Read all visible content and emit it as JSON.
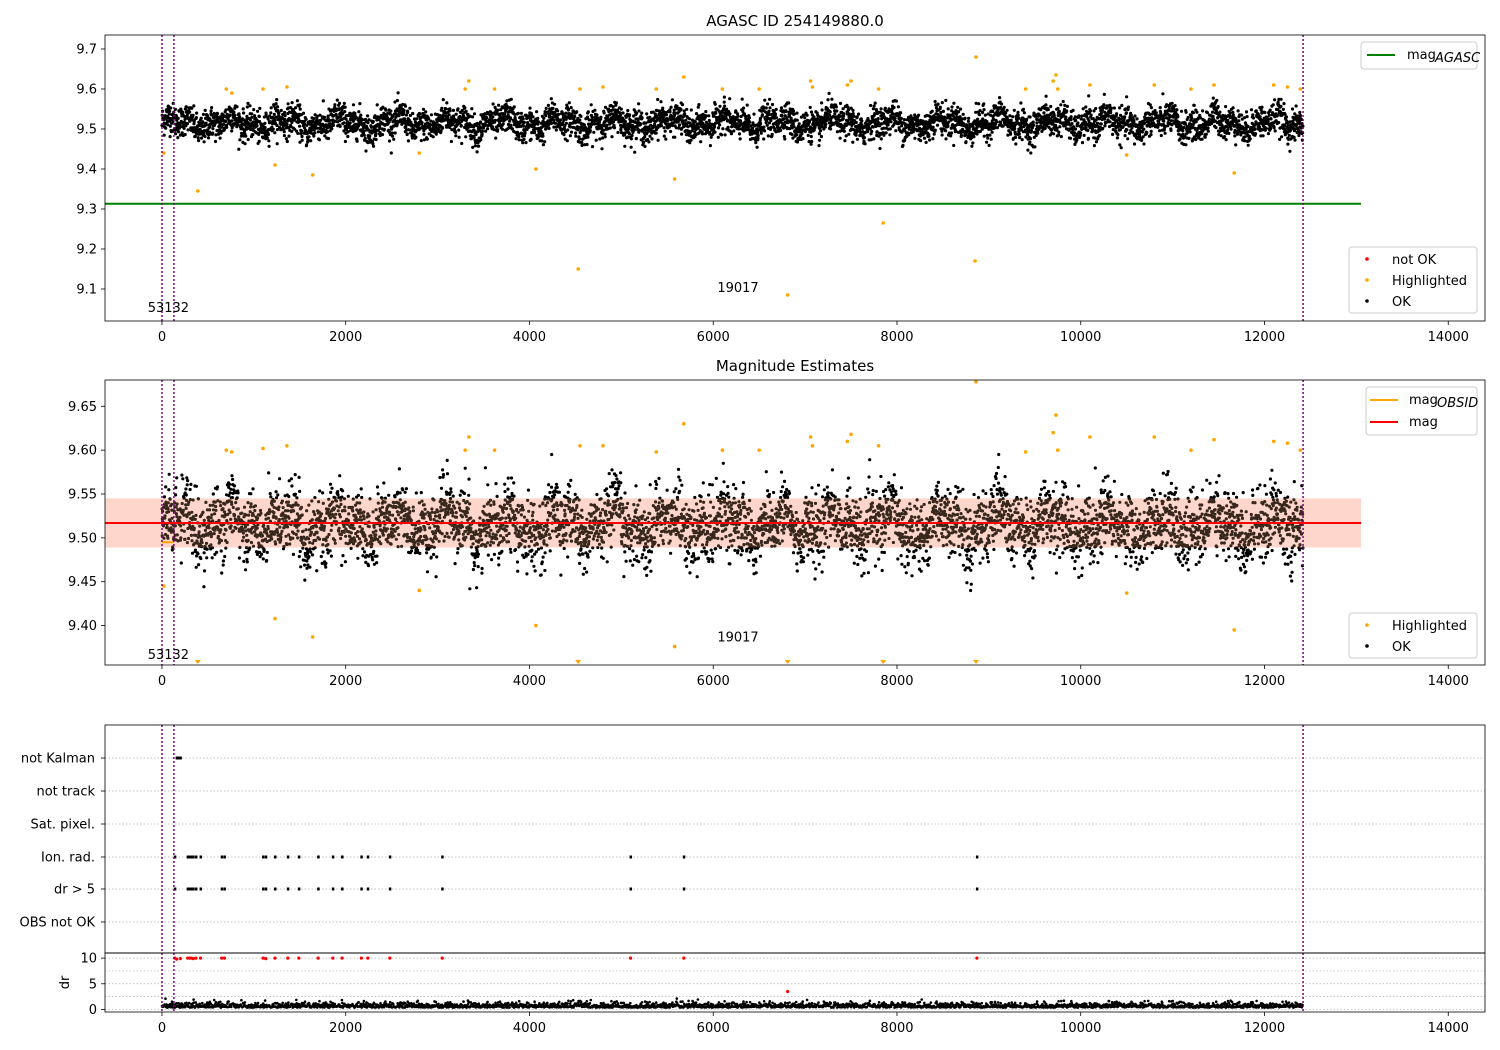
{
  "colors": {
    "ok": "#000000",
    "highlighted": "#ffa500",
    "not_ok": "#ff0000",
    "mag_agasc_line": "#008000",
    "mag_line": "#ff0000",
    "mag_obsid_line": "#ffa500",
    "band": "#ffc8c8",
    "vline": "#800080",
    "grid": "#b0b0b0"
  },
  "chart_data": [
    {
      "type": "scatter",
      "title": "AGASC ID 254149880.0",
      "xlim": [
        -620,
        14400
      ],
      "ylim": [
        9.02,
        9.735
      ],
      "xticks": [
        0,
        2000,
        4000,
        6000,
        8000,
        10000,
        12000,
        14000
      ],
      "xtick_labels": [
        "0",
        "2000",
        "4000",
        "6000",
        "8000",
        "10000",
        "12000",
        "14000"
      ],
      "yticks": [
        9.1,
        9.2,
        9.3,
        9.4,
        9.5,
        9.6,
        9.7
      ],
      "ytick_labels": [
        "9.1",
        "9.2",
        "9.3",
        "9.4",
        "9.5",
        "9.6",
        "9.7"
      ],
      "hline": {
        "name": "mag_AGASC",
        "y": 9.313,
        "x_range": [
          -620,
          13050
        ]
      },
      "vlines": [
        0,
        130,
        12420
      ],
      "annotations": [
        {
          "text": "53132",
          "x": 70,
          "y": 9.05
        },
        {
          "text": "19017",
          "x": 6270,
          "y": 9.1
        }
      ],
      "legend_top": {
        "position": "top-right",
        "entries": [
          {
            "label": "mag",
            "sub": "AGASC"
          }
        ]
      },
      "legend_bottom": {
        "position": "bottom-right",
        "entries": [
          "not OK",
          "Highlighted",
          "OK"
        ]
      },
      "series": [
        {
          "name": "OK",
          "distribution": {
            "x_range": [
              0,
              12420
            ],
            "center": 9.515,
            "spread": 0.06
          }
        },
        {
          "name": "Highlighted",
          "points": [
            [
              20,
              9.44
            ],
            [
              390,
              9.345
            ],
            [
              700,
              9.6
            ],
            [
              760,
              9.59
            ],
            [
              1100,
              9.6
            ],
            [
              1230,
              9.41
            ],
            [
              1360,
              9.605
            ],
            [
              1640,
              9.385
            ],
            [
              2800,
              9.44
            ],
            [
              3300,
              9.6
            ],
            [
              3340,
              9.62
            ],
            [
              3620,
              9.6
            ],
            [
              4070,
              9.4
            ],
            [
              4530,
              9.15
            ],
            [
              4550,
              9.6
            ],
            [
              4800,
              9.605
            ],
            [
              5380,
              9.6
            ],
            [
              5580,
              9.375
            ],
            [
              5680,
              9.63
            ],
            [
              6100,
              9.6
            ],
            [
              6500,
              9.6
            ],
            [
              6810,
              9.085
            ],
            [
              7060,
              9.62
            ],
            [
              7080,
              9.605
            ],
            [
              7460,
              9.61
            ],
            [
              7500,
              9.62
            ],
            [
              7800,
              9.6
            ],
            [
              7850,
              9.265
            ],
            [
              8850,
              9.17
            ],
            [
              8860,
              9.68
            ],
            [
              9400,
              9.6
            ],
            [
              9700,
              9.62
            ],
            [
              9730,
              9.635
            ],
            [
              9750,
              9.6
            ],
            [
              10100,
              9.61
            ],
            [
              10500,
              9.435
            ],
            [
              10800,
              9.61
            ],
            [
              11200,
              9.6
            ],
            [
              11450,
              9.61
            ],
            [
              11670,
              9.39
            ],
            [
              12100,
              9.61
            ],
            [
              12250,
              9.605
            ],
            [
              12390,
              9.6
            ]
          ]
        }
      ]
    },
    {
      "type": "scatter",
      "title": "Magnitude Estimates",
      "xlim": [
        -620,
        14400
      ],
      "ylim": [
        9.355,
        9.68
      ],
      "xticks": [
        0,
        2000,
        4000,
        6000,
        8000,
        10000,
        12000,
        14000
      ],
      "xtick_labels": [
        "0",
        "2000",
        "4000",
        "6000",
        "8000",
        "10000",
        "12000",
        "14000"
      ],
      "yticks": [
        9.4,
        9.45,
        9.5,
        9.55,
        9.6,
        9.65
      ],
      "ytick_labels": [
        "9.40",
        "9.45",
        "9.50",
        "9.55",
        "9.60",
        "9.65"
      ],
      "hline_mag": {
        "name": "mag",
        "y": 9.517,
        "x_range": [
          -620,
          13050
        ]
      },
      "band": {
        "y_low": 9.489,
        "y_high": 9.545,
        "x_range": [
          -620,
          13050
        ]
      },
      "mag_obsid_segments": [
        {
          "x0": 0,
          "x1": 130,
          "y": 9.495
        },
        {
          "x0": 130,
          "x1": 12420,
          "y": 9.517
        }
      ],
      "vlines": [
        0,
        130,
        12420
      ],
      "annotations": [
        {
          "text": "53132",
          "x": 70,
          "y": 9.365
        },
        {
          "text": "19017",
          "x": 6270,
          "y": 9.385
        }
      ],
      "legend_top": {
        "position": "top-right",
        "entries": [
          {
            "label": "mag",
            "sub": "OBSID"
          },
          {
            "label": "mag",
            "sub": ""
          }
        ]
      },
      "legend_bottom": {
        "position": "bottom-right",
        "entries": [
          "Highlighted",
          "OK"
        ]
      },
      "clipped_markers_x": [
        390,
        4530,
        6810,
        7850,
        8860
      ],
      "series": [
        {
          "name": "OK",
          "distribution": {
            "x_range": [
              0,
              12420
            ],
            "center": 9.515,
            "spread": 0.06
          }
        },
        {
          "name": "Highlighted",
          "points": [
            [
              20,
              9.445
            ],
            [
              700,
              9.6
            ],
            [
              760,
              9.598
            ],
            [
              1100,
              9.602
            ],
            [
              1230,
              9.408
            ],
            [
              1360,
              9.605
            ],
            [
              1640,
              9.387
            ],
            [
              2800,
              9.44
            ],
            [
              3300,
              9.6
            ],
            [
              3340,
              9.615
            ],
            [
              3620,
              9.6
            ],
            [
              4070,
              9.4
            ],
            [
              4550,
              9.605
            ],
            [
              4800,
              9.605
            ],
            [
              5380,
              9.598
            ],
            [
              5580,
              9.376
            ],
            [
              5680,
              9.63
            ],
            [
              6100,
              9.6
            ],
            [
              6500,
              9.6
            ],
            [
              7060,
              9.615
            ],
            [
              7080,
              9.605
            ],
            [
              7460,
              9.61
            ],
            [
              7500,
              9.618
            ],
            [
              7800,
              9.605
            ],
            [
              8860,
              9.678
            ],
            [
              9400,
              9.598
            ],
            [
              9700,
              9.62
            ],
            [
              9730,
              9.64
            ],
            [
              9750,
              9.6
            ],
            [
              10100,
              9.615
            ],
            [
              10500,
              9.437
            ],
            [
              10800,
              9.615
            ],
            [
              11200,
              9.6
            ],
            [
              11450,
              9.612
            ],
            [
              11670,
              9.395
            ],
            [
              12100,
              9.61
            ],
            [
              12250,
              9.608
            ],
            [
              12390,
              9.6
            ]
          ]
        }
      ]
    },
    {
      "type": "scatter",
      "title": "",
      "xlim": [
        -620,
        14400
      ],
      "xticks": [
        0,
        2000,
        4000,
        6000,
        8000,
        10000,
        12000,
        14000
      ],
      "xtick_labels": [
        "0",
        "2000",
        "4000",
        "6000",
        "8000",
        "10000",
        "12000",
        "14000"
      ],
      "flag_rows": [
        "not Kalman",
        "not track",
        "Sat. pixel.",
        "Ion. rad.",
        "dr > 5",
        "OBS not OK"
      ],
      "flags": {
        "not Kalman": [
          160,
          180,
          200
        ],
        "not track": [],
        "Sat. pixel.": [],
        "Ion. rad.": [
          140,
          280,
          300,
          320,
          340,
          370,
          420,
          650,
          680,
          1100,
          1130,
          1230,
          1370,
          1490,
          1700,
          1860,
          1960,
          2170,
          2240,
          2480,
          3050,
          5100,
          5680,
          8870
        ],
        "dr > 5": [
          140,
          280,
          300,
          320,
          340,
          370,
          420,
          650,
          680,
          1100,
          1130,
          1230,
          1370,
          1490,
          1700,
          1860,
          1960,
          2170,
          2240,
          2480,
          3050,
          5100,
          5680,
          8870
        ],
        "OBS not OK": []
      },
      "dr_ylabel": "dr",
      "dr_ylim": [
        -0.5,
        11
      ],
      "dr_yticks": [
        0,
        5,
        10
      ],
      "dr_ytick_labels": [
        "0",
        "5",
        "10"
      ],
      "dr_not_ok_points": [
        [
          140,
          10
        ],
        [
          160,
          9.8
        ],
        [
          200,
          9.9
        ],
        [
          280,
          10
        ],
        [
          300,
          10
        ],
        [
          320,
          10
        ],
        [
          340,
          9.9
        ],
        [
          370,
          10
        ],
        [
          420,
          10
        ],
        [
          650,
          10
        ],
        [
          680,
          10
        ],
        [
          1100,
          10
        ],
        [
          1130,
          9.9
        ],
        [
          1230,
          10
        ],
        [
          1370,
          10
        ],
        [
          1490,
          10
        ],
        [
          1700,
          10
        ],
        [
          1860,
          10
        ],
        [
          1960,
          10
        ],
        [
          2170,
          10
        ],
        [
          2240,
          10
        ],
        [
          2480,
          10
        ],
        [
          3050,
          10
        ],
        [
          5100,
          10
        ],
        [
          5680,
          10
        ],
        [
          6810,
          3.5
        ],
        [
          8870,
          10
        ]
      ],
      "vlines": [
        0,
        130,
        12420
      ]
    }
  ]
}
